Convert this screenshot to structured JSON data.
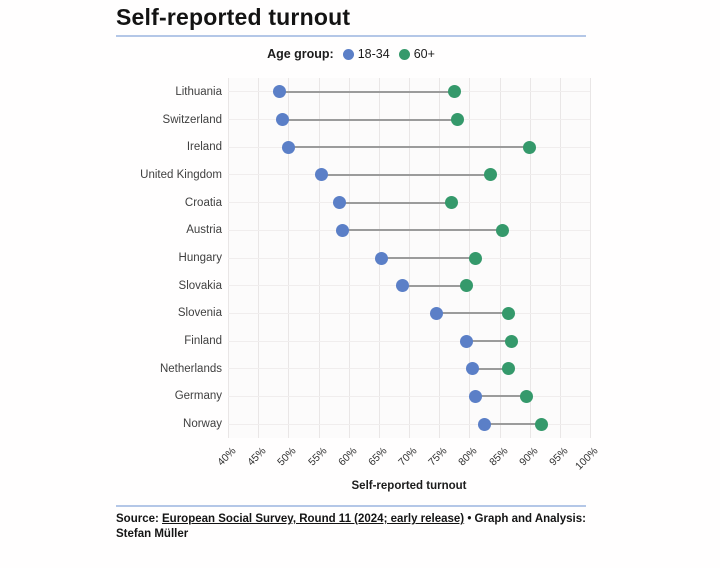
{
  "title": "Self-reported turnout",
  "legend": {
    "label": "Age group:",
    "items": [
      {
        "name": "18-34",
        "color": "#5b7fc7"
      },
      {
        "name": "60+",
        "color": "#35996b"
      }
    ]
  },
  "chart_data": {
    "type": "dumbbell",
    "categories": [
      "Lithuania",
      "Switzerland",
      "Ireland",
      "United Kingdom",
      "Croatia",
      "Austria",
      "Hungary",
      "Slovakia",
      "Slovenia",
      "Finland",
      "Netherlands",
      "Germany",
      "Norway"
    ],
    "series": [
      {
        "name": "18-34",
        "color": "#5b7fc7",
        "values": [
          48.5,
          49,
          50,
          55.5,
          58.5,
          59,
          65.5,
          69,
          74.5,
          79.5,
          80.5,
          81,
          82.5
        ]
      },
      {
        "name": "60+",
        "color": "#35996b",
        "values": [
          77.5,
          78,
          90,
          83.5,
          77,
          85.5,
          81,
          79.5,
          86.5,
          87,
          86.5,
          89.5,
          92
        ]
      }
    ],
    "xlabel": "Self-reported turnout",
    "xlim": [
      40,
      100
    ],
    "x_tick_step": 5,
    "x_tick_suffix": "%",
    "x_ticks": [
      "40%",
      "45%",
      "50%",
      "55%",
      "60%",
      "65%",
      "70%",
      "75%",
      "80%",
      "85%",
      "90%",
      "95%",
      "100%"
    ],
    "grid": true,
    "legend_position": "top",
    "connector_color": "#9b9b9b"
  },
  "footer": {
    "source_label": "Source: ",
    "source_link": "European Social Survey, Round 11 (2024; early release)",
    "credit": " • Graph and Analysis:",
    "credit_line2": "Stefan Müller"
  }
}
